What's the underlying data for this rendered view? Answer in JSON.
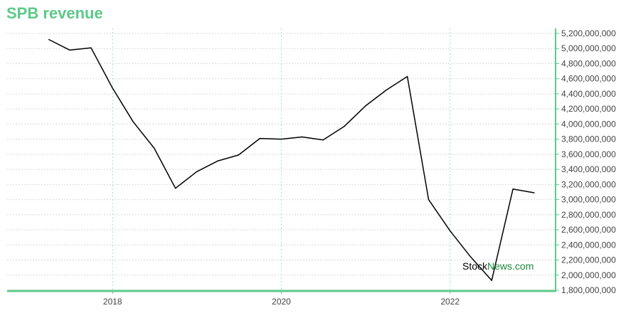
{
  "chart_data": {
    "type": "line",
    "title": "SPB revenue",
    "xlabel": "",
    "ylabel": "",
    "x_tick_labels": [
      "2018",
      "2020",
      "2022"
    ],
    "x_ticks": [
      2018,
      2020,
      2022
    ],
    "xlim": [
      2016.75,
      2023.25
    ],
    "y_tick_labels": [
      "5,200,000,000",
      "5,000,000,000",
      "4,800,000,000",
      "4,600,000,000",
      "4,400,000,000",
      "4,200,000,000",
      "4,000,000,000",
      "3,800,000,000",
      "3,600,000,000",
      "3,400,000,000",
      "3,200,000,000",
      "3,000,000,000",
      "2,800,000,000",
      "2,600,000,000",
      "2,400,000,000",
      "2,200,000,000",
      "2,000,000,000",
      "1,800,000,000"
    ],
    "y_ticks": [
      5200000000,
      5000000000,
      4800000000,
      4600000000,
      4400000000,
      4200000000,
      4000000000,
      3800000000,
      3600000000,
      3400000000,
      3200000000,
      3000000000,
      2800000000,
      2600000000,
      2400000000,
      2200000000,
      2000000000,
      1800000000
    ],
    "ylim": [
      1800000000,
      5200000000
    ],
    "grid": true,
    "colors": {
      "line": "#000000",
      "title": "#5cc98a",
      "axis": "#5cc98a",
      "grid": "#d9d9d9",
      "xgrid": "#a8e0c0"
    },
    "series": [
      {
        "x": [
          "2017-03-31",
          "2017-06-30",
          "2017-09-30",
          "2017-12-31",
          "2018-03-31",
          "2018-06-30",
          "2018-09-30",
          "2018-12-31",
          "2019-03-31",
          "2019-06-30",
          "2019-09-30",
          "2019-12-31",
          "2020-03-31",
          "2020-06-30",
          "2020-09-30",
          "2020-12-31",
          "2021-03-31",
          "2021-06-30",
          "2021-09-30",
          "2021-12-31",
          "2022-03-31",
          "2022-06-30",
          "2022-09-30",
          "2022-12-31"
        ],
        "values": [
          5120000000,
          4980000000,
          5010000000,
          4480000000,
          4030000000,
          3680000000,
          3150000000,
          3370000000,
          3510000000,
          3590000000,
          3810000000,
          3800000000,
          3830000000,
          3790000000,
          3970000000,
          4240000000,
          4450000000,
          4630000000,
          3000000000,
          2590000000,
          2240000000,
          1930000000,
          3140000000,
          3090000000
        ]
      }
    ]
  },
  "watermark": {
    "part1": "Stock",
    "part2": "News.com",
    "color1": "#000000",
    "color2": "#1a8a3a"
  }
}
